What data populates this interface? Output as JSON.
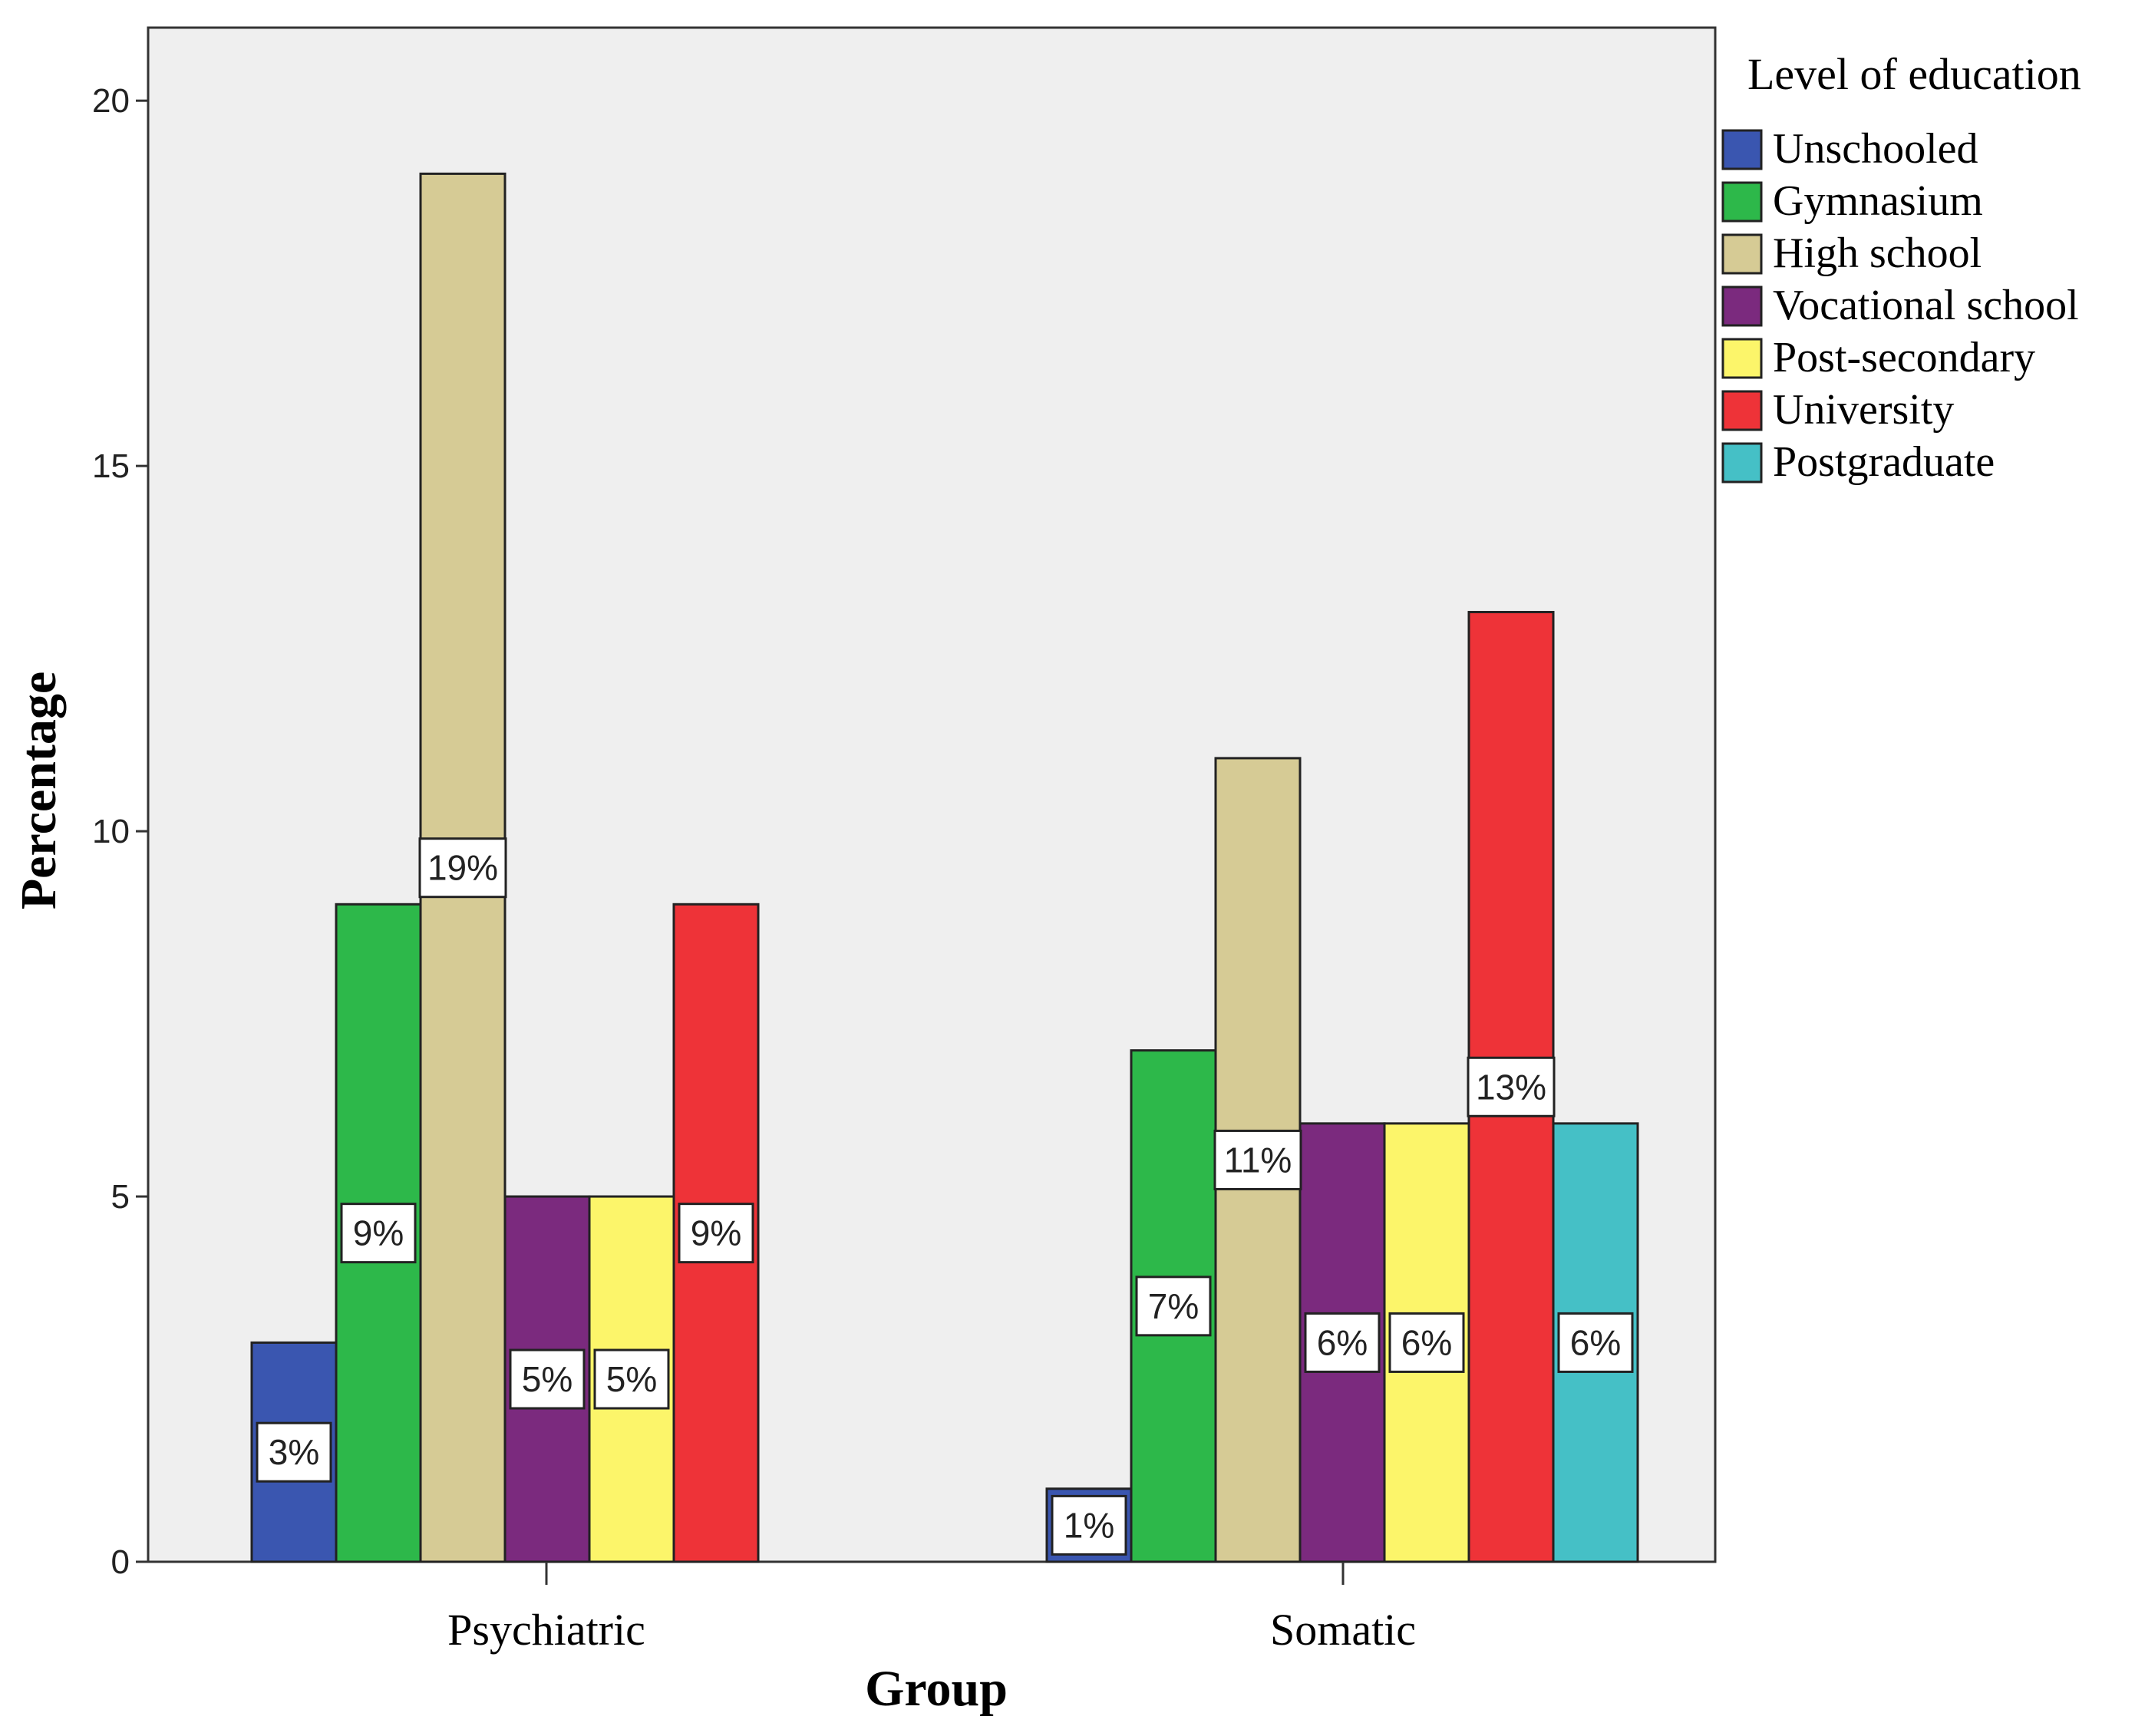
{
  "chart_data": {
    "type": "bar",
    "title": "",
    "xlabel": "Group",
    "ylabel": "Percentage",
    "ylim": [
      0,
      21
    ],
    "yticks": [
      "0",
      "5",
      "10",
      "15",
      "20"
    ],
    "categories": [
      "Psychiatric",
      "Somatic"
    ],
    "legend_title": "Level of education",
    "legend_position": "right",
    "series": [
      {
        "name": "Unschooled",
        "color": "#3a56b0",
        "values": [
          3,
          1
        ],
        "labels": [
          "3%",
          "1%"
        ]
      },
      {
        "name": "Gymnasium",
        "color": "#2db84a",
        "values": [
          9,
          7
        ],
        "labels": [
          "9%",
          "7%"
        ]
      },
      {
        "name": "High school",
        "color": "#d6cb95",
        "values": [
          19,
          11
        ],
        "labels": [
          "19%",
          "11%"
        ]
      },
      {
        "name": "Vocational school",
        "color": "#7b2a7e",
        "values": [
          5,
          6
        ],
        "labels": [
          "5%",
          "6%"
        ]
      },
      {
        "name": "Post-secondary",
        "color": "#fcf56a",
        "values": [
          5,
          6
        ],
        "labels": [
          "5%",
          "6%"
        ]
      },
      {
        "name": "University",
        "color": "#ee3338",
        "values": [
          9,
          13
        ],
        "labels": [
          "9%",
          "13%"
        ]
      },
      {
        "name": "Postgraduate",
        "color": "#45c0c6",
        "values": [
          null,
          6
        ],
        "labels": [
          null,
          "6%"
        ]
      }
    ]
  }
}
